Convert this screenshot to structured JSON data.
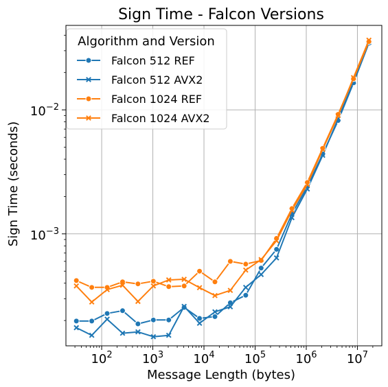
{
  "chart_data": {
    "type": "line",
    "title": "Sign Time - Falcon Versions",
    "xlabel": "Message Length (bytes)",
    "ylabel": "Sign Time (seconds)",
    "xscale": "log",
    "yscale": "log",
    "xlim": [
      20,
      30000000
    ],
    "ylim": [
      0.000125,
      0.048
    ],
    "x_ticks": [
      {
        "value": 100,
        "base": "10",
        "exp": "2"
      },
      {
        "value": 1000,
        "base": "10",
        "exp": "3"
      },
      {
        "value": 10000,
        "base": "10",
        "exp": "4"
      },
      {
        "value": 100000,
        "base": "10",
        "exp": "5"
      },
      {
        "value": 1000000,
        "base": "10",
        "exp": "6"
      },
      {
        "value": 10000000,
        "base": "10",
        "exp": "7"
      }
    ],
    "y_ticks": [
      {
        "value": 0.001,
        "base": "10",
        "exp": "−3"
      },
      {
        "value": 0.01,
        "base": "10",
        "exp": "−2"
      }
    ],
    "grid": true,
    "legend": {
      "title": "Algorithm and Version",
      "placement": "top-left"
    },
    "x": [
      32,
      64,
      128,
      256,
      512,
      1024,
      2048,
      4096,
      8192,
      16384,
      32768,
      65536,
      131072,
      262144,
      524288,
      1048576,
      2097152,
      4194304,
      8388608,
      16777216
    ],
    "series": [
      {
        "name": "Falcon 512 REF",
        "color": "#1f77b4",
        "marker": "circle",
        "values": [
          0.000198,
          0.000198,
          0.000228,
          0.00024,
          0.000188,
          0.000202,
          0.000202,
          0.000255,
          0.000208,
          0.000215,
          0.000278,
          0.00032,
          0.00053,
          0.00075,
          0.00145,
          0.0024,
          0.0044,
          0.0082,
          0.0165,
          0.0345
        ]
      },
      {
        "name": "Falcon 512 AVX2",
        "color": "#1f77b4",
        "marker": "x",
        "values": [
          0.000175,
          0.000152,
          0.000205,
          0.000158,
          0.000162,
          0.000148,
          0.000152,
          0.00026,
          0.00019,
          0.000235,
          0.000258,
          0.00037,
          0.00047,
          0.00064,
          0.00135,
          0.0023,
          0.0043,
          0.0085,
          0.0168,
          0.035
        ]
      },
      {
        "name": "Falcon 1024 REF",
        "color": "#ff7f0e",
        "marker": "circle",
        "values": [
          0.00042,
          0.00037,
          0.00037,
          0.00041,
          0.000395,
          0.000415,
          0.000375,
          0.00038,
          0.0005,
          0.00041,
          0.0006,
          0.00057,
          0.00061,
          0.00092,
          0.0016,
          0.0026,
          0.0049,
          0.0092,
          0.0178,
          0.0355
        ]
      },
      {
        "name": "Falcon 1024 AVX2",
        "color": "#ff7f0e",
        "marker": "x",
        "values": [
          0.00038,
          0.000282,
          0.000355,
          0.000385,
          0.000285,
          0.00038,
          0.000425,
          0.00043,
          0.000368,
          0.000318,
          0.00035,
          0.00051,
          0.00062,
          0.00088,
          0.00155,
          0.0025,
          0.0048,
          0.009,
          0.0182,
          0.0365
        ]
      }
    ]
  }
}
